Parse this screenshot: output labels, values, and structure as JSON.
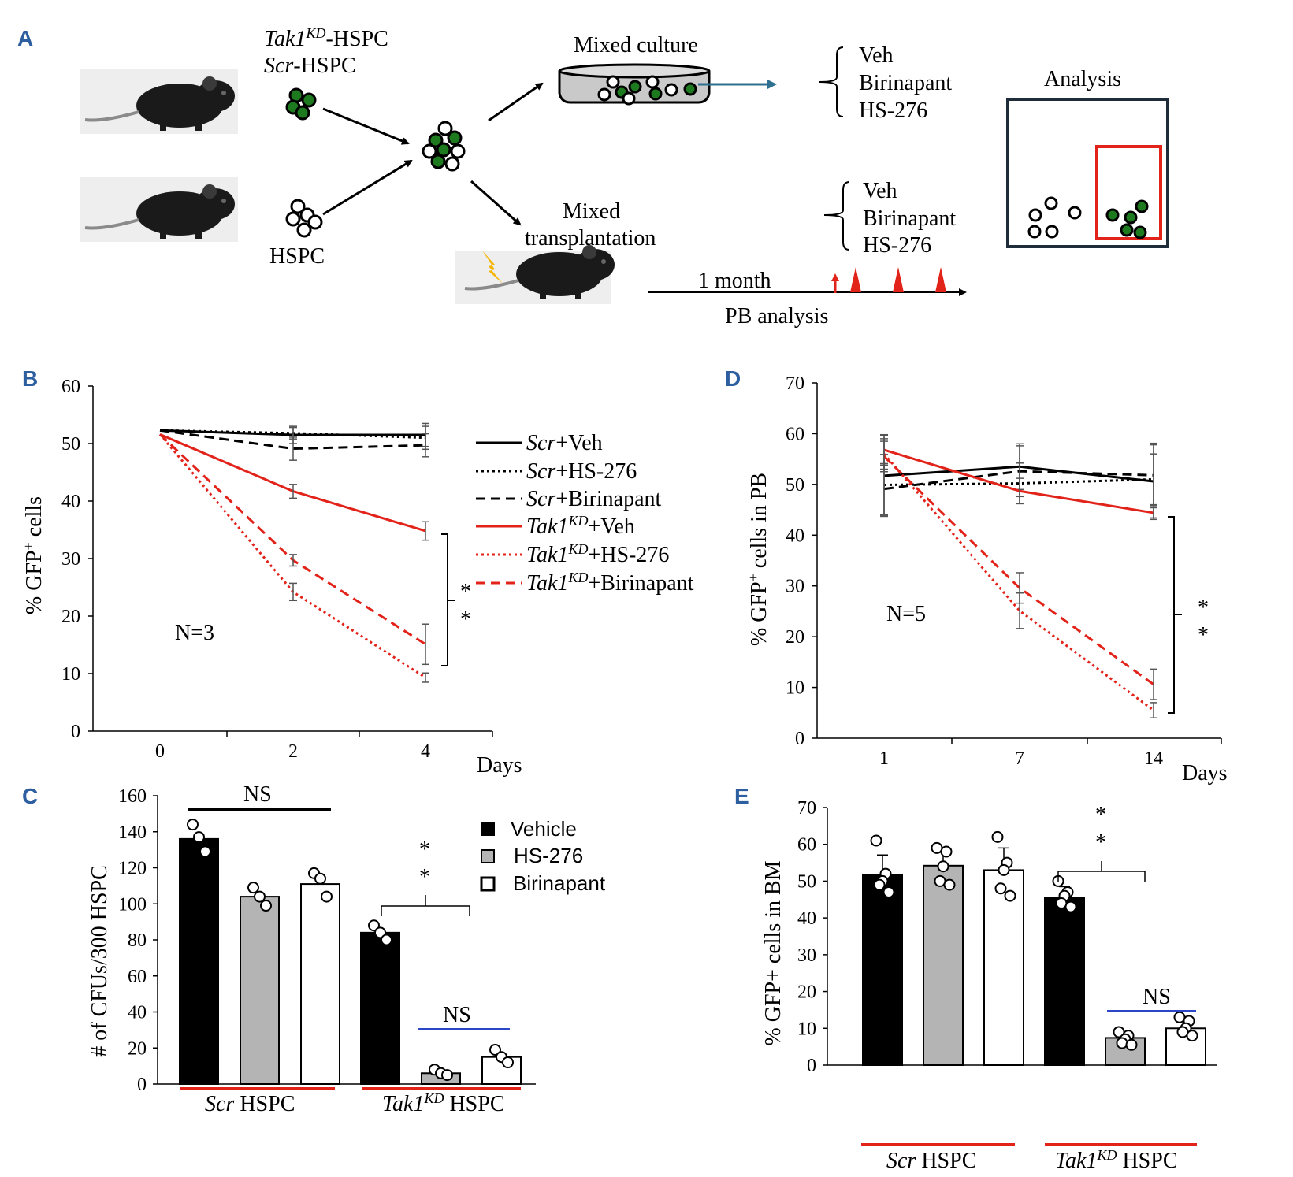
{
  "colors": {
    "accent": "#2d5fa0",
    "red": "#e2231a",
    "green": "#1e7a1e",
    "arrowTeal": "#2f6f8f",
    "gray": "#b4b4b4",
    "blueline": "#2b46c8"
  },
  "panelA": {
    "letter": "A",
    "tak1_label_main": "Tak1",
    "tak1_label_sup": "KD",
    "tak1_label_rest": "-HSPC",
    "scr_label_main": "Scr",
    "scr_label_rest": "-HSPC",
    "hspc_label": "HSPC",
    "mixed_culture": "Mixed culture",
    "mixed_transplant_1": "Mixed",
    "mixed_transplant_2": "transplantation",
    "culture_treatments": [
      "Veh",
      "Birinapant",
      "HS-276"
    ],
    "transplant_treatments": [
      "Veh",
      "Birinapant",
      "HS-276"
    ],
    "analysis": "Analysis",
    "timeline_label": "1 month",
    "pb_analysis": "PB analysis"
  },
  "panelB": {
    "letter": "B",
    "ylabel_pre": "% GFP",
    "ylabel_sup": "+",
    "ylabel_post": " cells",
    "n_label": "N=3",
    "xlabel": "Days",
    "sig": [
      "*",
      "*"
    ],
    "legend": [
      {
        "pre": "Scr",
        "post": "+Veh",
        "sup": ""
      },
      {
        "pre": "Scr",
        "post": "+HS-276",
        "sup": ""
      },
      {
        "pre": "Scr",
        "post": "+Birinapant",
        "sup": ""
      },
      {
        "pre": "Tak1",
        "sup": "KD",
        "post": "+Veh"
      },
      {
        "pre": "Tak1",
        "sup": "KD",
        "post": "+HS-276"
      },
      {
        "pre": "Tak1",
        "sup": "KD",
        "post": "+Birinapant"
      }
    ]
  },
  "panelC": {
    "letter": "C",
    "ylabel": "# of CFUs/300 HSPC",
    "ns_top": "NS",
    "ns_bottom": "NS",
    "sig": [
      "*",
      "*"
    ],
    "legend": [
      "Vehicle",
      "HS-276",
      "Birinapant"
    ],
    "group1_pre": "Scr",
    "group1_post": " HSPC",
    "group2_pre": "Tak1",
    "group2_sup": "KD",
    "group2_post": " HSPC"
  },
  "panelD": {
    "letter": "D",
    "ylabel_pre": "% GFP",
    "ylabel_sup": "+",
    "ylabel_post": " cells in PB",
    "n_label": "N=5",
    "xlabel": "Days",
    "sig": [
      "*",
      "*"
    ]
  },
  "panelE": {
    "letter": "E",
    "ylabel": "% GFP+ cells in BM",
    "ns": "NS",
    "sig": [
      "*",
      "*"
    ],
    "group1_pre": "Scr",
    "group1_post": " HSPC",
    "group2_pre": "Tak1",
    "group2_sup": "KD",
    "group2_post": " HSPC"
  },
  "chart_data": [
    {
      "id": "B",
      "type": "line",
      "xlabel": "Days",
      "ylabel": "% GFP+ cells",
      "ylim": [
        0,
        60
      ],
      "yticks": [
        0,
        10,
        20,
        30,
        40,
        50,
        60
      ],
      "xcats": [
        "0",
        "2",
        "4"
      ],
      "series": [
        {
          "name": "Scr+Veh",
          "color": "#000000",
          "dash": "solid",
          "values": [
            52.3,
            51.5,
            51.5
          ],
          "err": [
            0,
            1.5,
            2
          ]
        },
        {
          "name": "Scr+HS-276",
          "color": "#000000",
          "dash": "dot",
          "values": [
            52.3,
            51.8,
            51
          ],
          "err": [
            0,
            1,
            2
          ]
        },
        {
          "name": "Scr+Birinapant",
          "color": "#000000",
          "dash": "dash",
          "values": [
            52.3,
            49.1,
            49.7
          ],
          "err": [
            0,
            2,
            2
          ]
        },
        {
          "name": "Tak1KD+Veh",
          "color": "#e2231a",
          "dash": "solid",
          "values": [
            51.6,
            41.7,
            34.8
          ],
          "err": [
            0,
            1.2,
            1.6
          ]
        },
        {
          "name": "Tak1KD+HS-276",
          "color": "#e2231a",
          "dash": "dot",
          "values": [
            51.6,
            24.2,
            9.3
          ],
          "err": [
            0,
            1.5,
            0.8
          ]
        },
        {
          "name": "Tak1KD+Birinapant",
          "color": "#e2231a",
          "dash": "dash",
          "values": [
            51.6,
            29.7,
            15.1
          ],
          "err": [
            0,
            1,
            3.5
          ]
        }
      ]
    },
    {
      "id": "C",
      "type": "bar",
      "ylabel": "# of CFUs/300 HSPC",
      "ylim": [
        0,
        160
      ],
      "yticks": [
        0,
        20,
        40,
        60,
        80,
        100,
        120,
        140,
        160
      ],
      "groups": [
        "Scr HSPC",
        "Tak1KD HSPC"
      ],
      "series": [
        {
          "name": "Vehicle",
          "fill": "#000000",
          "values": [
            136,
            84
          ],
          "points": [
            [
              144,
              137,
              129
            ],
            [
              88,
              84,
              80
            ]
          ]
        },
        {
          "name": "HS-276",
          "fill": "#b4b4b4",
          "values": [
            104,
            6
          ],
          "points": [
            [
              109,
              104,
              99
            ],
            [
              8,
              6,
              5
            ]
          ]
        },
        {
          "name": "Birinapant",
          "fill": "#ffffff",
          "values": [
            111,
            15
          ],
          "points": [
            [
              117,
              114,
              104
            ],
            [
              19,
              15,
              12
            ]
          ]
        }
      ]
    },
    {
      "id": "D",
      "type": "line",
      "xlabel": "Days",
      "ylabel": "% GFP+ cells in PB",
      "ylim": [
        0,
        70
      ],
      "yticks": [
        0,
        10,
        20,
        30,
        40,
        50,
        60,
        70
      ],
      "xcats": [
        "1",
        "7",
        "14"
      ],
      "series": [
        {
          "name": "Scr+Veh",
          "color": "#000000",
          "dash": "solid",
          "values": [
            51.7,
            53.5,
            50.6
          ],
          "err": [
            8,
            4.5,
            7.5
          ]
        },
        {
          "name": "Scr+HS-276",
          "color": "#000000",
          "dash": "dot",
          "values": [
            49.9,
            50.2,
            51
          ],
          "err": [
            6,
            4,
            5
          ]
        },
        {
          "name": "Scr+Birinapant",
          "color": "#000000",
          "dash": "dash",
          "values": [
            49.1,
            52.6,
            51.8
          ],
          "err": [
            5,
            5,
            6
          ]
        },
        {
          "name": "Tak1KD+Veh",
          "color": "#e2231a",
          "dash": "solid",
          "values": [
            56.8,
            48.7,
            44.4
          ],
          "err": [
            3,
            2.5,
            1
          ]
        },
        {
          "name": "Tak1KD+HS-276",
          "color": "#e2231a",
          "dash": "dot",
          "values": [
            56,
            25.1,
            5.5
          ],
          "err": [
            3,
            3.5,
            1.5
          ]
        },
        {
          "name": "Tak1KD+Birinapant",
          "color": "#e2231a",
          "dash": "dash",
          "values": [
            55.5,
            29.6,
            10.6
          ],
          "err": [
            3,
            3,
            3
          ]
        }
      ]
    },
    {
      "id": "E",
      "type": "bar",
      "ylabel": "% GFP+ cells in BM",
      "ylim": [
        0,
        70
      ],
      "yticks": [
        0,
        10,
        20,
        30,
        40,
        50,
        60,
        70
      ],
      "groups": [
        "Scr HSPC",
        "Tak1KD HSPC"
      ],
      "series": [
        {
          "name": "Vehicle",
          "fill": "#000000",
          "values": [
            51.6,
            45.5
          ],
          "err": [
            5.5,
            3
          ],
          "points": [
            [
              61,
              52,
              50,
              49,
              47
            ],
            [
              50,
              47,
              46,
              44,
              43
            ]
          ]
        },
        {
          "name": "HS-276",
          "fill": "#b4b4b4",
          "values": [
            54.2,
            7.4
          ],
          "err": [
            4,
            1.5
          ],
          "points": [
            [
              59,
              58,
              54,
              50,
              49
            ],
            [
              9,
              8,
              7,
              6,
              5.5
            ]
          ]
        },
        {
          "name": "Birinapant",
          "fill": "#ffffff",
          "values": [
            53,
            10
          ],
          "err": [
            6,
            2
          ],
          "points": [
            [
              62,
              55,
              53,
              48,
              46
            ],
            [
              13,
              12,
              10,
              9,
              8
            ]
          ]
        }
      ]
    }
  ]
}
